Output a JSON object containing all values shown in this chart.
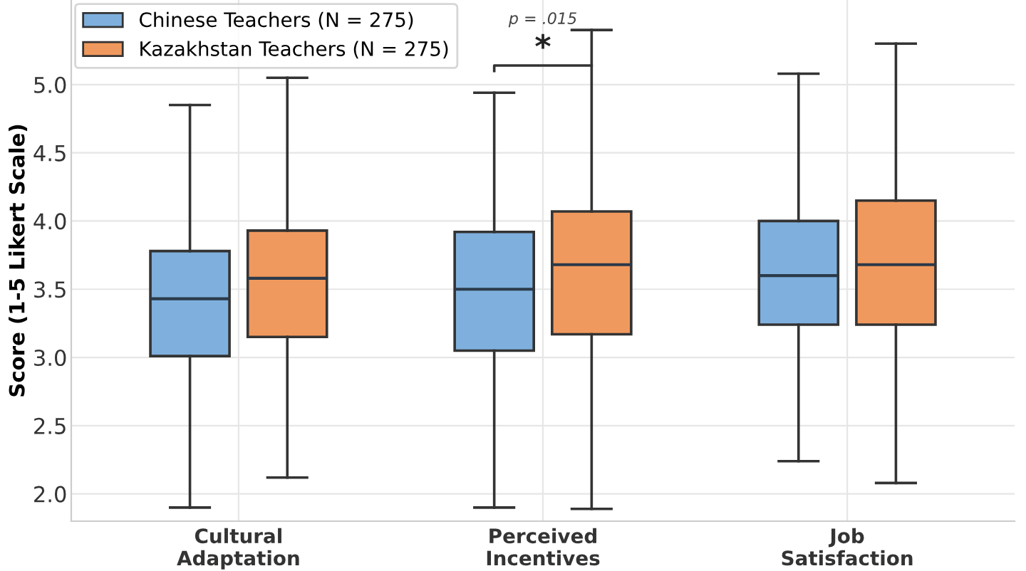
{
  "chart_data": {
    "type": "box",
    "ylabel": "Score (1-5 Likert Scale)",
    "categories": [
      "Cultural\nAdaptation",
      "Perceived\nIncentives",
      "Job\nSatisfaction"
    ],
    "series": [
      {
        "name": "Chinese Teachers (N = 275)",
        "color": "#7fb0dd",
        "boxes": [
          {
            "low": 1.9,
            "q1": 3.01,
            "median": 3.43,
            "q3": 3.78,
            "high": 4.85
          },
          {
            "low": 1.9,
            "q1": 3.05,
            "median": 3.5,
            "q3": 3.92,
            "high": 4.94
          },
          {
            "low": 2.24,
            "q1": 3.24,
            "median": 3.6,
            "q3": 4.0,
            "high": 5.08
          }
        ]
      },
      {
        "name": "Kazakhstan Teachers (N = 275)",
        "color": "#f0995e",
        "boxes": [
          {
            "low": 2.12,
            "q1": 3.15,
            "median": 3.58,
            "q3": 3.93,
            "high": 5.05
          },
          {
            "low": 1.89,
            "q1": 3.17,
            "median": 3.68,
            "q3": 4.07,
            "high": 5.4
          },
          {
            "low": 2.08,
            "q1": 3.24,
            "median": 3.68,
            "q3": 4.15,
            "high": 5.3
          }
        ]
      }
    ],
    "ylim": [
      1.8,
      5.62
    ],
    "yticks": [
      {
        "value": 2,
        "label": "2.0"
      },
      2.5,
      {
        "value": 3,
        "label": "3.0"
      },
      3.5,
      {
        "value": 4,
        "label": "4.0"
      },
      4.5,
      {
        "value": 5,
        "label": "5.0"
      }
    ],
    "annotations": [
      "p = .015",
      "*"
    ],
    "grid": true,
    "legend": "top left"
  }
}
